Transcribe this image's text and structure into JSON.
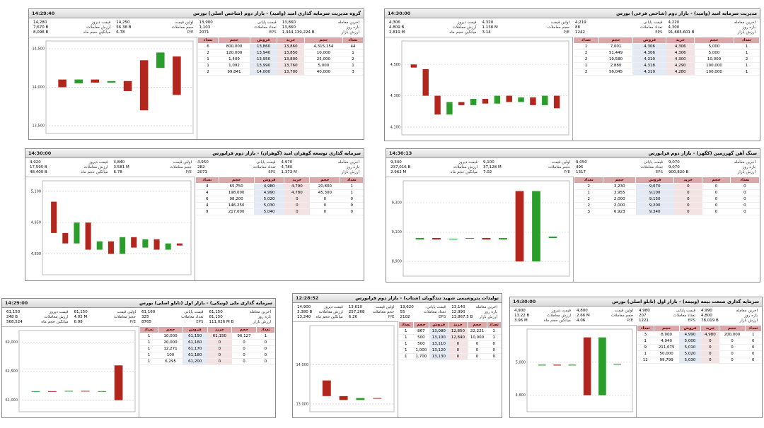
{
  "orderbook_headers": [
    "تعداد",
    "حجم",
    "خرید",
    "فروش",
    "حجم",
    "تعداد"
  ],
  "panels": [
    {
      "title": "گروه مدیریت سرمایه گذاری امید (وامید) - بازار دوم (شاخص اصلی) بورس",
      "time": "14:29:40",
      "info": [
        [
          "آخرین معامله",
          "13,860"
        ],
        [
          "قیمت پایانی",
          "13,900"
        ],
        [
          "اولین قیمت",
          "14,250"
        ],
        [
          "قیمت دیروز",
          "14,280"
        ],
        [
          "بازه روز",
          "13,860"
        ],
        [
          "تعداد معاملات",
          "1,103"
        ],
        [
          "حجم معاملات",
          "56.38 B"
        ],
        [
          "ارزش معاملات",
          "7,670 B"
        ],
        [
          "ارزش بازار",
          "1,344,139,224 B"
        ],
        [
          "EPS",
          "2071"
        ],
        [
          "P/E",
          "6.78"
        ],
        [
          "میانگین حجم ماه",
          "8,098 B"
        ]
      ],
      "chart": {
        "ylim": [
          13400,
          14600
        ],
        "yticks": [
          {
            "value": 13500,
            "label": "13,500"
          },
          {
            "value": 14000,
            "label": "14,000"
          },
          {
            "value": 14500,
            "label": "14,500"
          }
        ],
        "prices": [
          [
            14100,
            14000
          ],
          [
            14050,
            14100
          ],
          [
            14100,
            14060
          ],
          [
            14060,
            14080
          ],
          [
            14080,
            13950
          ],
          [
            14350,
            13700
          ],
          [
            14250,
            14450
          ],
          [
            14400,
            13900
          ]
        ]
      },
      "orderbook": [
        [
          "44",
          "4,315,154",
          "13,860",
          "13,860",
          "800,000",
          "6"
        ],
        [
          "1",
          "10,000",
          "13,850",
          "13,940",
          "120,000",
          "2"
        ],
        [
          "2",
          "25,000",
          "13,800",
          "13,950",
          "1,409",
          "1"
        ],
        [
          "1",
          "5,000",
          "13,760",
          "13,990",
          "1,092",
          "1"
        ],
        [
          "3",
          "40,000",
          "13,700",
          "14,000",
          "99,841",
          "2"
        ]
      ]
    },
    {
      "title": "مدیریت سرمایه امید (وامید) - بازار دوم (شاخص فرعی) بورس",
      "time": "14:30:00",
      "info": [
        [
          "آخرین معامله",
          "4,220"
        ],
        [
          "قیمت پایانی",
          "4,219"
        ],
        [
          "اولین قیمت",
          "4,320"
        ],
        [
          "قیمت دیروز",
          "4,306"
        ],
        [
          "بازه روز",
          "4,300"
        ],
        [
          "تعداد معاملات",
          "88"
        ],
        [
          "حجم معاملات",
          "1.138 M"
        ],
        [
          "ارزش معاملات",
          "4.809 B"
        ],
        [
          "ارزش بازار",
          "91,885.601 B"
        ],
        [
          "EPS",
          "1242"
        ],
        [
          "P/E",
          "3.14"
        ],
        [
          "میانگین حجم ماه",
          "2.819 M"
        ]
      ],
      "chart": {
        "ylim": [
          4050,
          4650
        ],
        "yticks": [
          {
            "value": 4100,
            "label": "4,100"
          },
          {
            "value": 4300,
            "label": "4,300"
          },
          {
            "value": 4500,
            "label": "4,500"
          }
        ],
        "prices": [
          [
            4500,
            4480
          ],
          [
            4470,
            4300
          ],
          [
            4300,
            4180
          ],
          [
            4180,
            4260
          ],
          [
            4260,
            4240
          ],
          [
            4240,
            4280
          ],
          [
            4280,
            4250
          ],
          [
            4250,
            4300
          ],
          [
            4300,
            4260
          ],
          [
            4260,
            4290
          ],
          [
            4290,
            4240
          ],
          [
            4240,
            4300
          ],
          [
            4300,
            4220
          ]
        ]
      },
      "orderbook": [
        [
          "1",
          "5,000",
          "4,306",
          "4,306",
          "7,001",
          "1"
        ],
        [
          "1",
          "5,000",
          "4,306",
          "4,306",
          "51,449",
          "2"
        ],
        [
          "2",
          "10,000",
          "4,300",
          "4,310",
          "19,580",
          "2"
        ],
        [
          "1",
          "100,000",
          "4,290",
          "4,318",
          "2,880",
          "1"
        ],
        [
          "1",
          "100,000",
          "4,280",
          "4,319",
          "56,045",
          "2"
        ]
      ]
    },
    {
      "title": "سرمایه گذاری توسعه گوهران امید (گوهران) - بازار دوم فرابورس",
      "time": "14:30:00",
      "info": [
        [
          "آخرین معامله",
          "4,970"
        ],
        [
          "قیمت پایانی",
          "4,950"
        ],
        [
          "اولین قیمت",
          "4,840"
        ],
        [
          "قیمت دیروز",
          "4,920"
        ],
        [
          "بازه روز",
          "4,780"
        ],
        [
          "تعداد معاملات",
          "282"
        ],
        [
          "حجم معاملات",
          "3.581 M"
        ],
        [
          "ارزش معاملات",
          "17.595 B"
        ],
        [
          "ارزش بازار",
          "1,373 M"
        ],
        [
          "EPS",
          "2071"
        ],
        [
          "P/E",
          "6.78"
        ],
        [
          "میانگین حجم ماه",
          "48,400 B"
        ]
      ],
      "chart": {
        "ylim": [
          4700,
          5150
        ],
        "yticks": [
          {
            "value": 4800,
            "label": "4,800"
          },
          {
            "value": 4950,
            "label": "4,950"
          },
          {
            "value": 5100,
            "label": "5,100"
          }
        ],
        "prices": [
          [
            5050,
            4900
          ],
          [
            4900,
            4850
          ],
          [
            4850,
            4950
          ],
          [
            4950,
            4820
          ],
          [
            4820,
            4860
          ],
          [
            4860,
            4800
          ],
          [
            4800,
            4880
          ],
          [
            4880,
            4830
          ],
          [
            4830,
            4870
          ],
          [
            4870,
            4820
          ],
          [
            4820,
            4850
          ],
          [
            4850,
            4840
          ]
        ]
      },
      "orderbook": [
        [
          "1",
          "20,800",
          "4,790",
          "4,980",
          "65,750",
          "4"
        ],
        [
          "1",
          "45,300",
          "4,780",
          "4,990",
          "198,000",
          "4"
        ],
        [
          "0",
          "0",
          "0",
          "5,020",
          "98,200",
          "6"
        ],
        [
          "0",
          "0",
          "0",
          "5,030",
          "146,250",
          "4"
        ],
        [
          "0",
          "0",
          "0",
          "5,040",
          "217,000",
          "9"
        ]
      ]
    },
    {
      "title": "سنگ آهن گهرزمین (کگهر) - بازار دوم فرابورس",
      "time": "14:30:13",
      "info": [
        [
          "آخرین معامله",
          "9,070"
        ],
        [
          "قیمت پایانی",
          "9,050"
        ],
        [
          "اولین قیمت",
          "9,100"
        ],
        [
          "قیمت دیروز",
          "9,340"
        ],
        [
          "بازه روز",
          "9,070"
        ],
        [
          "تعداد معاملات",
          "495"
        ],
        [
          "حجم معاملات",
          "37,128 M"
        ],
        [
          "ارزش معاملات",
          "237,016 B"
        ],
        [
          "ارزش بازار",
          "900,820 B"
        ],
        [
          "EPS",
          "1317"
        ],
        [
          "P/E",
          "7.02"
        ],
        [
          "میانگین حجم ماه",
          "2.962 M"
        ]
      ],
      "chart": {
        "ylim": [
          8800,
          9450
        ],
        "yticks": [
          {
            "value": 8900,
            "label": "8,900"
          },
          {
            "value": 9100,
            "label": "9,100"
          },
          {
            "value": 9300,
            "label": "9,300"
          }
        ],
        "prices": [
          [
            9050,
            9060
          ],
          [
            9060,
            9050
          ],
          [
            9050,
            9055
          ],
          [
            9055,
            9060
          ],
          [
            9060,
            9050
          ],
          [
            9050,
            9060
          ],
          [
            9380,
            8900
          ],
          [
            8900,
            9380
          ],
          [
            9060,
            9070
          ]
        ]
      },
      "orderbook": [
        [
          "0",
          "0",
          "0",
          "9,070",
          "3,230",
          "2"
        ],
        [
          "0",
          "0",
          "0",
          "9,100",
          "3,955",
          "1"
        ],
        [
          "0",
          "0",
          "0",
          "9,150",
          "2,000",
          "2"
        ],
        [
          "0",
          "0",
          "0",
          "9,200",
          "2,000",
          "2"
        ],
        [
          "0",
          "0",
          "0",
          "9,340",
          "6,923",
          "3"
        ]
      ]
    },
    {
      "title": "سرمایه گذاری ملی (ونیکی) - بازار اول (تابلو اصلی) بورس",
      "time": "14:29:00",
      "info": [
        [
          "آخرین معامله",
          "61,150"
        ],
        [
          "قیمت پایانی",
          "61,160"
        ],
        [
          "اولین قیمت",
          "61,150"
        ],
        [
          "قیمت دیروز",
          "61,150"
        ],
        [
          "بازه روز",
          "61,150"
        ],
        [
          "تعداد معاملات",
          "325"
        ],
        [
          "حجم معاملات",
          "4.05 M"
        ],
        [
          "ارزش معاملات",
          "248 B"
        ],
        [
          "ارزش بازار",
          "111,026 M B"
        ],
        [
          "EPS",
          "8765"
        ],
        [
          "P/E",
          "6.98"
        ],
        [
          "میانگین حجم ماه",
          "568,524"
        ]
      ],
      "chart": {
        "ylim": [
          60800,
          62200
        ],
        "yticks": [
          {
            "value": 61000,
            "label": "61,000"
          },
          {
            "value": 61500,
            "label": "61,500"
          },
          {
            "value": 62000,
            "label": "62,000"
          }
        ],
        "prices": [
          [
            61150,
            61155
          ],
          [
            61155,
            61150
          ],
          [
            61150,
            61160
          ],
          [
            61160,
            61150
          ],
          [
            61150,
            61155
          ],
          [
            61600,
            61000
          ]
        ]
      },
      "orderbook": [
        [
          "1",
          "96,127",
          "61,150",
          "61,150",
          "10,000",
          "1"
        ],
        [
          "0",
          "0",
          "0",
          "61,160",
          "20,000",
          "1"
        ],
        [
          "0",
          "0",
          "0",
          "61,170",
          "12,271",
          "1"
        ],
        [
          "0",
          "0",
          "0",
          "61,180",
          "100",
          "1"
        ],
        [
          "0",
          "0",
          "0",
          "61,200",
          "6,295",
          "1"
        ]
      ]
    },
    {
      "title": "تولیدات پتروشیمی شهید تندگویان (شتاب) - بازار دوم فرابورس",
      "time": "12:28:52",
      "info": [
        [
          "آخرین معامله",
          "13,140"
        ],
        [
          "قیمت پایانی",
          "13,620"
        ],
        [
          "اولین قیمت",
          "13,610"
        ],
        [
          "قیمت دیروز",
          "14,900"
        ],
        [
          "بازه روز",
          "12,990"
        ],
        [
          "تعداد معاملات",
          "55"
        ],
        [
          "حجم معاملات",
          "257,268"
        ],
        [
          "ارزش معاملات",
          "3.380 B"
        ],
        [
          "ارزش بازار",
          "13,867.5 B"
        ],
        [
          "EPS",
          "2102"
        ],
        [
          "P/E",
          "6.26"
        ],
        [
          "میانگین حجم ماه",
          "13,240"
        ]
      ],
      "chart": {
        "ylim": [
          12800,
          15000
        ],
        "yticks": [
          {
            "value": 13000,
            "label": "13,000"
          },
          {
            "value": 14000,
            "label": "14,000"
          }
        ],
        "prices": [
          [
            13600,
            13200
          ],
          [
            13200,
            13100
          ],
          [
            13100,
            13150
          ],
          [
            13150,
            13140
          ]
        ]
      },
      "orderbook": [
        [
          "1",
          "22,221",
          "12,850",
          "13,080",
          "867",
          "1"
        ],
        [
          "1",
          "10,000",
          "12,840",
          "13,100",
          "500",
          "1"
        ],
        [
          "0",
          "0",
          "0",
          "13,110",
          "500",
          "1"
        ],
        [
          "0",
          "0",
          "0",
          "13,120",
          "1,000",
          "1"
        ],
        [
          "0",
          "0",
          "0",
          "13,130",
          "1,700",
          "1"
        ]
      ]
    },
    {
      "title": "سرمایه گذاری صنعت بیمه (وبیمه) - بازار اول (تابلو اصلی) بورس",
      "time": "14:30:00",
      "info": [
        [
          "آخرین معامله",
          "4,990"
        ],
        [
          "قیمت پایانی",
          "4,980"
        ],
        [
          "اولین قیمت",
          "4,800"
        ],
        [
          "قیمت دیروز",
          "4,900"
        ],
        [
          "بازه روز",
          "4,800"
        ],
        [
          "تعداد معاملات",
          "207"
        ],
        [
          "حجم معاملات",
          "2.66 M"
        ],
        [
          "ارزش معاملات",
          "13.22 B"
        ],
        [
          "ارزش بازار",
          "78,019 B"
        ],
        [
          "EPS",
          "1221"
        ],
        [
          "P/E",
          "4.06"
        ],
        [
          "میانگین حجم ماه",
          "3.96 M"
        ]
      ],
      "chart": {
        "ylim": [
          4700,
          5200
        ],
        "yticks": [
          {
            "value": 4800,
            "label": "4,800"
          },
          {
            "value": 5000,
            "label": "5,000"
          }
        ],
        "prices": [
          [
            4980,
            4985
          ],
          [
            4985,
            4980
          ],
          [
            4980,
            4985
          ],
          [
            5150,
            4800
          ],
          [
            4800,
            5150
          ],
          [
            4985,
            4990
          ]
        ]
      },
      "orderbook": [
        [
          "1",
          "200,000",
          "4,980",
          "4,990",
          "8,000",
          "3"
        ],
        [
          "0",
          "0",
          "0",
          "5,000",
          "4,940",
          "1"
        ],
        [
          "0",
          "0",
          "0",
          "5,010",
          "211,675",
          "9"
        ],
        [
          "0",
          "0",
          "0",
          "5,020",
          "50,000",
          "1"
        ],
        [
          "0",
          "0",
          "0",
          "5,030",
          "99,799",
          "12"
        ]
      ]
    }
  ]
}
